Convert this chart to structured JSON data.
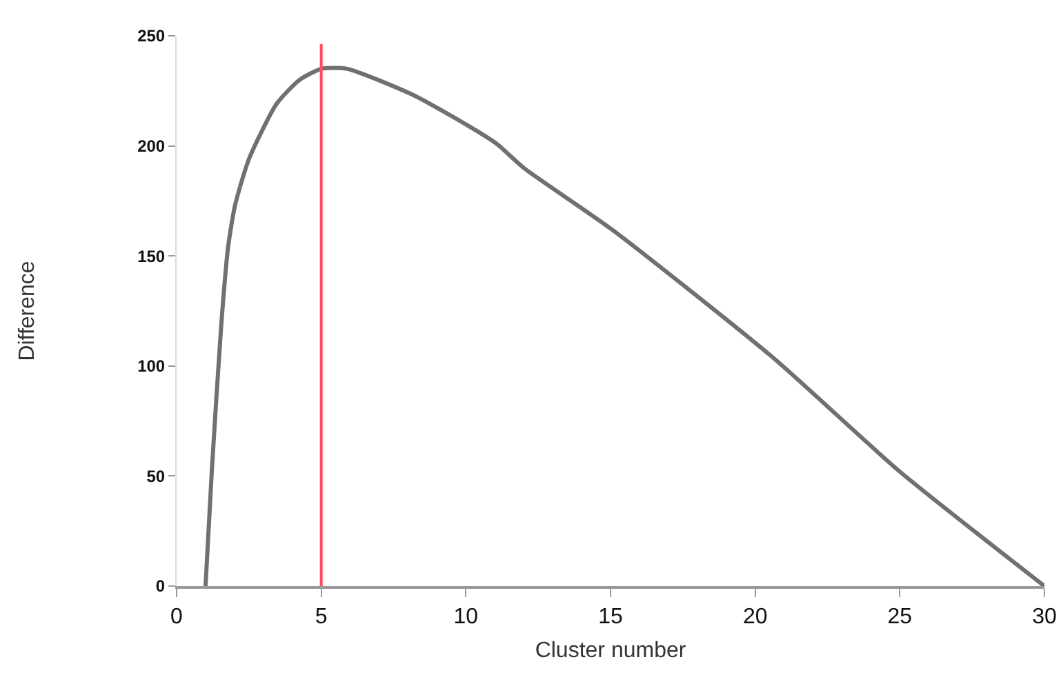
{
  "chart_data": {
    "type": "line",
    "xlabel": "Cluster number",
    "ylabel": "Difference",
    "x": [
      1,
      1.22,
      1.54,
      1.78,
      2.02,
      2.5,
      3.45,
      4.25,
      5,
      5.9,
      8.2,
      10.1,
      11.06,
      12,
      15.05,
      20.6,
      25,
      30
    ],
    "series": [
      {
        "color": "#707070",
        "values": [
          0,
          53,
          118,
          154,
          173,
          194,
          219,
          230,
          235,
          235,
          223,
          209,
          201,
          190,
          162,
          104,
          52,
          0
        ]
      }
    ],
    "xlim": [
      0,
      30
    ],
    "xticks": [
      0,
      5,
      10,
      15,
      20,
      25,
      30
    ],
    "ylim": [
      0,
      250
    ],
    "yticks": [
      0,
      50,
      100,
      150,
      200,
      250
    ],
    "grid": false,
    "legend": false,
    "marker": "none",
    "line_style": "solid",
    "ref_lines": [
      {
        "axis": "x",
        "value": 5,
        "color": "#ff4d5e",
        "line_style": "solid"
      }
    ]
  }
}
